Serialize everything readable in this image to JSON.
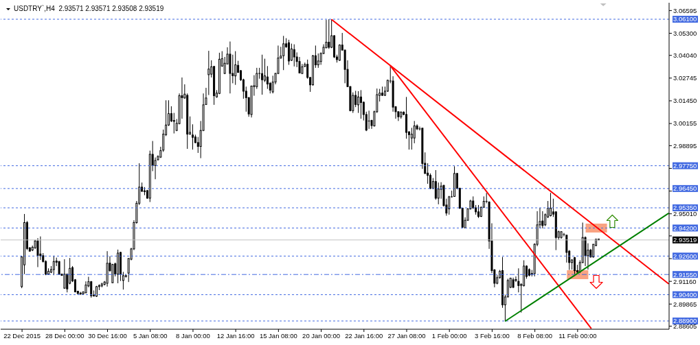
{
  "chart_data": {
    "type": "candlestick",
    "title": "USDTRY`,H4  2.93571 2.93571 2.93508 2.93519",
    "categories": [
      "22 Dec 2015",
      null,
      null,
      null,
      null,
      null,
      null,
      null,
      null,
      null,
      null,
      null,
      null,
      null,
      null,
      null,
      "28 Dec 00:00",
      null,
      null,
      null,
      null,
      null,
      null,
      null,
      null,
      null,
      null,
      null,
      null,
      null,
      null,
      null,
      "30 Dec 16:00",
      null,
      null,
      null,
      null,
      null,
      null,
      null,
      null,
      null,
      null,
      null,
      null,
      null,
      null,
      null,
      "5 Jan 08:00",
      null,
      null,
      null,
      null,
      null,
      null,
      null,
      null,
      null,
      null,
      null,
      null,
      null,
      null,
      null,
      "8 Jan 00:00",
      null,
      null,
      null,
      null,
      null,
      null,
      null,
      null,
      null,
      null,
      null,
      null,
      null,
      null,
      null,
      "12 Jan 16:00",
      null,
      null,
      null,
      null,
      null,
      null,
      null,
      null,
      null,
      null,
      null,
      null,
      null,
      null,
      null,
      "15 Jan 08:00",
      null,
      null,
      null,
      null,
      null,
      null,
      null,
      null,
      null,
      null,
      null,
      null,
      null,
      null,
      null,
      "20 Jan 00:00",
      null,
      null,
      null,
      null,
      null,
      null,
      null,
      null,
      null,
      null,
      null,
      null,
      null,
      null,
      null,
      "22 Jan 16:00",
      null,
      null,
      null,
      null,
      null,
      null,
      null,
      null,
      null,
      null,
      null,
      null,
      null,
      null,
      null,
      "27 Jan 08:00",
      null,
      null,
      null,
      null,
      null,
      null,
      null,
      null,
      null,
      null,
      null,
      null,
      null,
      null,
      null,
      "1 Feb 00:00",
      null,
      null,
      null,
      null,
      null,
      null,
      null,
      null,
      null,
      null,
      null,
      null,
      null,
      null,
      null,
      "3 Feb 16:00",
      null,
      null,
      null,
      null,
      null,
      null,
      null,
      null,
      null,
      null,
      null,
      null,
      null,
      null,
      null,
      "8 Feb 08:00",
      null,
      null,
      null,
      null,
      null,
      null,
      null,
      null,
      null,
      null,
      null,
      null,
      null,
      null,
      null,
      "11 Feb 00:00",
      null,
      null,
      null,
      null,
      null,
      null,
      null,
      null,
      null,
      null,
      null,
      null,
      null,
      null,
      null,
      null,
      null,
      null,
      null,
      null,
      null,
      null,
      null,
      null,
      null,
      null,
      null,
      null,
      null,
      null,
      null,
      null,
      null,
      null
    ],
    "color": "#000000",
    "ohlc": [
      [
        2.9086,
        2.9262,
        2.9077,
        2.9255
      ],
      [
        2.921,
        2.95,
        2.9157,
        2.9451
      ],
      [
        2.9451,
        2.946,
        2.9294,
        2.9303
      ],
      [
        2.9307,
        2.9311,
        2.9285,
        2.9288
      ],
      [
        2.9294,
        2.932,
        2.9288,
        2.931
      ],
      [
        2.9307,
        2.9353,
        2.9301,
        2.9346
      ],
      [
        2.9346,
        2.9362,
        2.9197,
        2.9264
      ],
      [
        2.9272,
        2.9372,
        2.9238,
        2.9262
      ],
      [
        2.9262,
        2.9277,
        2.9223,
        2.9229
      ],
      [
        2.9229,
        2.9236,
        2.9151,
        2.9157
      ],
      [
        2.9157,
        2.919,
        2.9153,
        2.9173
      ],
      [
        2.9168,
        2.9203,
        2.9163,
        2.9183
      ],
      [
        2.9183,
        2.9262,
        2.9151,
        2.9229
      ],
      [
        2.9232,
        2.9251,
        2.9203,
        2.9225
      ],
      [
        2.9229,
        2.9232,
        2.9153,
        2.9157
      ],
      [
        2.9157,
        2.916,
        2.9147,
        2.915
      ],
      [
        2.9077,
        2.9242,
        2.9073,
        2.9157
      ],
      [
        2.9157,
        2.916,
        2.9053,
        2.9073
      ],
      [
        2.9105,
        2.9249,
        2.9099,
        2.919
      ],
      [
        2.9194,
        2.9203,
        2.9112,
        2.9118
      ],
      [
        2.9125,
        2.9129,
        2.9053,
        2.9056
      ],
      [
        2.906,
        2.9062,
        2.904,
        2.9047
      ],
      [
        2.9049,
        2.9056,
        2.9038,
        2.9045
      ],
      [
        2.9044,
        2.906,
        2.904,
        2.9055
      ],
      [
        2.9051,
        2.9116,
        2.9048,
        2.9095
      ],
      [
        2.909,
        2.9142,
        2.9082,
        2.9114
      ],
      [
        2.9114,
        2.9118,
        2.9023,
        2.9034
      ],
      [
        2.9038,
        2.9064,
        2.903,
        2.9032
      ],
      [
        2.9031,
        2.909,
        2.9027,
        2.9086
      ],
      [
        2.9086,
        2.9099,
        2.9066,
        2.9092
      ],
      [
        2.909,
        2.9108,
        2.9082,
        2.9101
      ],
      [
        2.9099,
        2.9118,
        2.9092,
        2.9112
      ],
      [
        2.9105,
        2.9288,
        2.9086,
        2.9219
      ],
      [
        2.922,
        2.9259,
        2.917,
        2.9177
      ],
      [
        2.9108,
        2.9216,
        2.9105,
        2.9212
      ],
      [
        2.9216,
        2.9223,
        2.9144,
        2.9157
      ],
      [
        2.9157,
        2.9297,
        2.9105,
        2.9277
      ],
      [
        2.9281,
        2.9284,
        2.9118,
        2.9157
      ],
      [
        2.9121,
        2.917,
        2.9069,
        2.9148
      ],
      [
        2.9144,
        2.9157,
        2.9137,
        2.9148
      ],
      [
        2.9163,
        2.9249,
        2.9112,
        2.9246
      ],
      [
        2.9242,
        2.9307,
        2.9236,
        2.9301
      ],
      [
        2.9301,
        2.9464,
        2.9294,
        2.9451
      ],
      [
        2.9451,
        2.9574,
        2.9444,
        2.9561
      ],
      [
        2.9561,
        2.9789,
        2.9551,
        2.9653
      ],
      [
        2.9653,
        2.9679,
        2.9627,
        2.9629
      ],
      [
        2.9632,
        2.9653,
        2.9607,
        2.9627
      ],
      [
        2.9633,
        2.9637,
        2.9587,
        2.959
      ],
      [
        2.959,
        2.9861,
        2.9568,
        2.984
      ],
      [
        2.984,
        2.9916,
        2.9744,
        2.9776
      ],
      [
        2.9776,
        2.9822,
        2.9698,
        2.9805
      ],
      [
        2.9809,
        2.9835,
        2.9805,
        2.9827
      ],
      [
        2.9824,
        2.9883,
        2.9819,
        2.9861
      ],
      [
        2.9864,
        2.9981,
        2.9854,
        2.9955
      ],
      [
        2.9952,
        3.0148,
        2.9944,
        3.0007
      ],
      [
        3.0007,
        3.0148,
        3.0002,
        3.0072
      ],
      [
        3.0072,
        3.0114,
        3.0024,
        3.003
      ],
      [
        3.0033,
        3.0076,
        2.9959,
        3.0028
      ],
      [
        2.9976,
        3.0041,
        2.9972,
        3.0017
      ],
      [
        3.0015,
        3.0187,
        3.0011,
        3.0174
      ],
      [
        3.0174,
        3.0278,
        3.0043,
        3.0163
      ],
      [
        3.0161,
        3.0239,
        3.0157,
        3.0183
      ],
      [
        3.0176,
        3.0187,
        2.9871,
        2.9955
      ],
      [
        2.9955,
        3.0056,
        2.9952,
        2.9965
      ],
      [
        2.995,
        3.0011,
        2.9867,
        2.9937
      ],
      [
        2.9939,
        2.9952,
        2.9903,
        2.9907
      ],
      [
        2.9907,
        2.9939,
        2.9848,
        2.9885
      ],
      [
        2.9885,
        3.003,
        2.9818,
        2.9976
      ],
      [
        2.9976,
        3.0187,
        2.9972,
        3.0122
      ],
      [
        3.0124,
        3.0219,
        3.0122,
        3.0161
      ],
      [
        3.0294,
        3.043,
        3.0178,
        3.0326
      ],
      [
        3.0297,
        3.0376,
        3.0278,
        3.0339
      ],
      [
        3.0341,
        3.0343,
        3.0122,
        3.0174
      ],
      [
        3.0167,
        3.0206,
        3.0163,
        3.0189
      ],
      [
        3.0187,
        3.0419,
        3.0183,
        3.0382
      ],
      [
        3.0343,
        3.0428,
        3.0339,
        3.0385
      ],
      [
        3.0301,
        3.0395,
        3.0297,
        3.0359
      ],
      [
        3.0355,
        3.045,
        3.0353,
        3.0411
      ],
      [
        3.0411,
        3.0483,
        3.0187,
        3.0301
      ],
      [
        3.0301,
        3.0408,
        3.0245,
        3.0288
      ],
      [
        3.0287,
        3.0428,
        3.0236,
        3.035
      ],
      [
        3.0347,
        3.0373,
        3.0304,
        3.0307
      ],
      [
        3.0317,
        3.032,
        3.0258,
        3.0265
      ],
      [
        3.0265,
        3.0271,
        3.0157,
        3.02
      ],
      [
        3.02,
        3.0226,
        3.0083,
        3.0163
      ],
      [
        3.0163,
        3.0167,
        3.0054,
        3.007
      ],
      [
        3.0067,
        3.0232,
        3.005,
        3.0229
      ],
      [
        3.0226,
        3.0291,
        3.0174,
        3.0231
      ],
      [
        3.0226,
        3.0333,
        3.0213,
        3.0301
      ],
      [
        3.0301,
        3.0333,
        3.0271,
        3.03
      ],
      [
        3.03,
        3.0408,
        3.018,
        3.0265
      ],
      [
        3.0262,
        3.0385,
        3.0252,
        3.0287
      ],
      [
        3.0281,
        3.0343,
        3.0213,
        3.0241
      ],
      [
        3.0245,
        3.0252,
        3.0187,
        3.0206
      ],
      [
        3.0196,
        3.0288,
        3.0187,
        3.0252
      ],
      [
        3.0252,
        3.0304,
        3.0239,
        3.0301
      ],
      [
        3.0301,
        3.046,
        3.0297,
        3.0389
      ],
      [
        3.0389,
        3.0453,
        3.0385,
        3.04
      ],
      [
        3.0402,
        3.0515,
        3.032,
        3.047
      ],
      [
        3.047,
        3.0502,
        3.0447,
        3.0453
      ],
      [
        3.0476,
        3.0493,
        3.035,
        3.0372
      ],
      [
        3.0376,
        3.0471,
        3.0372,
        3.0441
      ],
      [
        3.0437,
        3.0467,
        3.0341,
        3.0395
      ],
      [
        3.0395,
        3.0421,
        3.0337,
        3.0369
      ],
      [
        3.0369,
        3.0395,
        3.0301,
        3.0304
      ],
      [
        3.0301,
        3.0355,
        3.0297,
        3.0339
      ],
      [
        3.0341,
        3.0363,
        3.0337,
        3.0352
      ],
      [
        3.0353,
        3.038,
        3.0271,
        3.0278
      ],
      [
        3.0278,
        3.0281,
        3.0196,
        3.0236
      ],
      [
        3.0236,
        3.0406,
        3.0232,
        3.0402
      ],
      [
        3.0402,
        3.046,
        3.0333,
        3.035
      ],
      [
        3.035,
        3.0415,
        3.0333,
        3.0372
      ],
      [
        3.0369,
        3.0421,
        3.035,
        3.0415
      ],
      [
        3.0415,
        3.0467,
        3.0411,
        3.045
      ],
      [
        3.0447,
        3.0606,
        3.0445,
        3.0479
      ],
      [
        3.0479,
        3.061,
        3.0441,
        3.045
      ],
      [
        3.045,
        3.061,
        3.0445,
        3.0516
      ],
      [
        3.0516,
        3.0519,
        3.0389,
        3.0395
      ],
      [
        3.0395,
        3.0408,
        3.0363,
        3.038
      ],
      [
        3.0376,
        3.0467,
        3.0372,
        3.0463
      ],
      [
        3.0463,
        3.0532,
        3.0432,
        3.0434
      ],
      [
        3.0434,
        3.0437,
        3.0245,
        3.0324
      ],
      [
        3.0324,
        3.0376,
        3.0223,
        3.0226
      ],
      [
        3.0226,
        3.0229,
        3.0085,
        3.0089
      ],
      [
        3.0089,
        3.0193,
        3.0076,
        3.0176
      ],
      [
        3.0176,
        3.0202,
        3.0109,
        3.0124
      ],
      [
        3.0122,
        3.02,
        3.0076,
        3.0167
      ],
      [
        3.0167,
        3.0206,
        3.0043,
        3.0135
      ],
      [
        3.0137,
        3.0141,
        3.0033,
        3.0067
      ],
      [
        3.0067,
        3.0083,
        2.9972,
        2.9978
      ],
      [
        3.003,
        3.0089,
        2.9985,
        3.0028
      ],
      [
        3.0033,
        3.0037,
        2.9985,
        3.0004
      ],
      [
        3.0002,
        3.0089,
        2.9998,
        3.0083
      ],
      [
        3.0083,
        3.0215,
        3.0076,
        3.018
      ],
      [
        3.0176,
        3.0213,
        3.0141,
        3.0189
      ],
      [
        3.0189,
        3.0226,
        3.0174,
        3.0176
      ],
      [
        3.0176,
        3.0226,
        3.0174,
        3.02
      ],
      [
        3.02,
        3.0265,
        3.0196,
        3.0262
      ],
      [
        3.0258,
        3.0343,
        3.0245,
        3.0257
      ],
      [
        3.0258,
        3.0285,
        3.0083,
        3.0109
      ],
      [
        3.0111,
        3.0115,
        3.0043,
        3.0083
      ],
      [
        3.0083,
        3.0085,
        3.003,
        3.0054
      ],
      [
        3.0054,
        3.0085,
        3.0043,
        3.008
      ],
      [
        3.008,
        3.0085,
        3.0063,
        3.0067
      ],
      [
        3.0067,
        3.0167,
        2.9929,
        2.9965
      ],
      [
        2.9968,
        2.9972,
        2.9867,
        2.9952
      ],
      [
        2.9933,
        2.9991,
        2.9867,
        2.9955
      ],
      [
        2.9933,
        3.003,
        2.9903,
        3.0002
      ],
      [
        3.0002,
        3.0011,
        2.9978,
        2.9985
      ],
      [
        2.9985,
        2.9998,
        2.9976,
        2.9984
      ],
      [
        2.9989,
        2.9991,
        2.9757,
        2.9788
      ],
      [
        2.9789,
        2.9851,
        2.9728,
        2.9731
      ],
      [
        2.9733,
        2.9789,
        2.9672,
        2.972
      ],
      [
        2.972,
        2.9731,
        2.9642,
        2.9646
      ],
      [
        2.9646,
        2.9705,
        2.9642,
        2.9685
      ],
      [
        2.9685,
        2.975,
        2.9581,
        2.959
      ],
      [
        2.959,
        2.9679,
        2.9555,
        2.9642
      ],
      [
        2.964,
        2.9681,
        2.9587,
        2.9659
      ],
      [
        2.9663,
        2.9666,
        2.9542,
        2.9548
      ],
      [
        2.9551,
        2.9587,
        2.949,
        2.9505
      ],
      [
        2.9529,
        2.9603,
        2.9496,
        2.9598
      ],
      [
        2.9598,
        2.9633,
        2.9593,
        2.9597
      ],
      [
        2.96,
        2.9772,
        2.9598,
        2.9731
      ],
      [
        2.9731,
        2.9733,
        2.964,
        2.9646
      ],
      [
        2.9646,
        2.965,
        2.9529,
        2.9533
      ],
      [
        2.9533,
        2.9535,
        2.9418,
        2.9425
      ],
      [
        2.9421,
        2.9481,
        2.9418,
        2.9464
      ],
      [
        2.9464,
        2.9533,
        2.946,
        2.9529
      ],
      [
        2.9529,
        2.9581,
        2.9525,
        2.9574
      ],
      [
        2.9574,
        2.96,
        2.9529,
        2.9535
      ],
      [
        2.9535,
        2.9551,
        2.9496,
        2.9512
      ],
      [
        2.9512,
        2.9551,
        2.9477,
        2.9486
      ],
      [
        2.9486,
        2.9542,
        2.9483,
        2.9538
      ],
      [
        2.9538,
        2.96,
        2.9535,
        2.9572
      ],
      [
        2.9572,
        2.962,
        2.9561,
        2.9569
      ],
      [
        2.9568,
        2.9572,
        2.9301,
        2.9346
      ],
      [
        2.9346,
        2.9447,
        2.9163,
        2.9177
      ],
      [
        2.9181,
        2.9186,
        2.9082,
        2.9105
      ],
      [
        2.9105,
        2.9151,
        2.9099,
        2.9137
      ],
      [
        2.9137,
        2.9181,
        2.9131,
        2.9173
      ],
      [
        2.9177,
        2.9255,
        2.8965,
        2.8982
      ],
      [
        2.8982,
        2.904,
        2.889,
        2.9027
      ],
      [
        2.9027,
        2.9131,
        2.9025,
        2.9121
      ],
      [
        2.9082,
        2.9137,
        2.9077,
        2.9134
      ],
      [
        2.9125,
        2.9137,
        2.9077,
        2.9082
      ],
      [
        2.9126,
        2.9144,
        2.9112,
        2.9121
      ],
      [
        2.9116,
        2.919,
        2.9053,
        2.9092
      ],
      [
        2.9092,
        2.9105,
        2.8938,
        2.9099
      ],
      [
        2.9092,
        2.9236,
        2.9086,
        2.9203
      ],
      [
        2.9203,
        2.9207,
        2.9131,
        2.9144
      ],
      [
        2.9183,
        2.919,
        2.9144,
        2.9151
      ],
      [
        2.9161,
        2.9181,
        2.9144,
        2.9157
      ],
      [
        2.916,
        2.9333,
        2.9144,
        2.9327
      ],
      [
        2.9327,
        2.9516,
        2.9316,
        2.9438
      ],
      [
        2.9438,
        2.9535,
        2.9418,
        2.9457
      ],
      [
        2.946,
        2.9516,
        2.9418,
        2.9434
      ],
      [
        2.9438,
        2.9503,
        2.9431,
        2.9496
      ],
      [
        2.9483,
        2.9574,
        2.9477,
        2.9533
      ],
      [
        2.949,
        2.962,
        2.9486,
        2.9533
      ],
      [
        2.9512,
        2.9587,
        2.9483,
        2.9499
      ],
      [
        2.9512,
        2.9516,
        2.9294,
        2.9366
      ],
      [
        2.9366,
        2.9405,
        2.9353,
        2.9399
      ],
      [
        2.9366,
        2.9402,
        2.9359,
        2.9399
      ],
      [
        2.9383,
        2.9392,
        2.9372,
        2.938
      ],
      [
        2.9379,
        2.9381,
        2.9223,
        2.9281
      ],
      [
        2.9288,
        2.9294,
        2.9181,
        2.9223
      ],
      [
        2.9223,
        2.9242,
        2.9183,
        2.9238
      ],
      [
        2.9251,
        2.9255,
        2.9157,
        2.9177
      ],
      [
        2.9177,
        2.921,
        2.9163,
        2.917
      ],
      [
        2.917,
        2.9236,
        2.9163,
        2.9223
      ],
      [
        2.9223,
        2.9451,
        2.922,
        2.9366
      ],
      [
        2.9366,
        2.9372,
        2.9203,
        2.9262
      ],
      [
        2.9262,
        2.9333,
        2.9183,
        2.9294
      ],
      [
        2.9294,
        2.9301,
        2.9251,
        2.9255
      ],
      [
        2.9255,
        2.9329,
        2.9251,
        2.9327
      ],
      [
        2.932,
        2.9359,
        2.9316,
        2.9356
      ],
      [
        2.93571,
        2.93571,
        2.93508,
        2.93519
      ],
      null,
      null,
      null,
      null,
      null,
      null,
      null,
      null,
      null,
      null,
      null,
      null,
      null,
      null,
      null,
      null,
      null,
      null,
      null,
      null,
      null,
      null,
      null,
      null,
      null,
      null
    ],
    "series": [
      {
        "type": "line",
        "color": "#ff0000",
        "values": [
          null,
          null,
          null,
          null,
          null,
          null,
          null,
          null,
          null,
          null,
          null,
          null,
          null,
          null,
          null,
          null,
          null,
          null,
          null,
          null,
          null,
          null,
          null,
          null,
          null,
          null,
          null,
          null,
          null,
          null,
          null,
          null,
          null,
          null,
          null,
          null,
          null,
          null,
          null,
          null,
          null,
          null,
          null,
          null,
          null,
          null,
          null,
          null,
          null,
          null,
          null,
          null,
          null,
          null,
          null,
          null,
          null,
          null,
          null,
          null,
          null,
          null,
          null,
          null,
          null,
          null,
          null,
          null,
          null,
          null,
          null,
          null,
          null,
          null,
          null,
          null,
          null,
          null,
          null,
          null,
          null,
          null,
          null,
          null,
          null,
          null,
          null,
          null,
          null,
          null,
          null,
          null,
          null,
          null,
          null,
          null,
          null,
          null,
          null,
          null,
          null,
          null,
          null,
          null,
          null,
          null,
          null,
          null,
          null,
          null,
          null,
          null,
          null,
          null,
          null,
          null,
          3.0607,
          null,
          null,
          null,
          null,
          null,
          null,
          null,
          null,
          null,
          null,
          null,
          null,
          null,
          null,
          null,
          null,
          null,
          null,
          null,
          null,
          null,
          null,
          null,
          null,
          null,
          null,
          null,
          null,
          null,
          null,
          null,
          null,
          null,
          null,
          null,
          null,
          null,
          null,
          null,
          null,
          null,
          null,
          null,
          null,
          null,
          null,
          null,
          null,
          null,
          null,
          null,
          null,
          null,
          null,
          null,
          null,
          null,
          null,
          null,
          null,
          null,
          null,
          null,
          null,
          null,
          null,
          null,
          null,
          null,
          null,
          null,
          null,
          null,
          null,
          null,
          null,
          null,
          null,
          null,
          null,
          null,
          null,
          null,
          null,
          null,
          null,
          null,
          null,
          null,
          null,
          null,
          null,
          null,
          null,
          null,
          null,
          null,
          null,
          null,
          null,
          null,
          null,
          null,
          null,
          null,
          null,
          null,
          null,
          null,
          null,
          null,
          null,
          null,
          null,
          null,
          null,
          null,
          null,
          null,
          null,
          null,
          null,
          null,
          null,
          null,
          2.9103
        ]
      },
      {
        "type": "line",
        "color": "#ff0000",
        "values": [
          null,
          null,
          null,
          null,
          null,
          null,
          null,
          null,
          null,
          null,
          null,
          null,
          null,
          null,
          null,
          null,
          null,
          null,
          null,
          null,
          null,
          null,
          null,
          null,
          null,
          null,
          null,
          null,
          null,
          null,
          null,
          null,
          null,
          null,
          null,
          null,
          null,
          null,
          null,
          null,
          null,
          null,
          null,
          null,
          null,
          null,
          null,
          null,
          null,
          null,
          null,
          null,
          null,
          null,
          null,
          null,
          null,
          null,
          null,
          null,
          null,
          null,
          null,
          null,
          null,
          null,
          null,
          null,
          null,
          null,
          null,
          null,
          null,
          null,
          null,
          null,
          null,
          null,
          null,
          null,
          null,
          null,
          null,
          null,
          null,
          null,
          null,
          null,
          null,
          null,
          null,
          null,
          null,
          null,
          null,
          null,
          null,
          null,
          null,
          null,
          null,
          null,
          null,
          null,
          null,
          null,
          null,
          null,
          null,
          null,
          null,
          null,
          null,
          null,
          null,
          null,
          null,
          null,
          null,
          null,
          null,
          null,
          null,
          null,
          null,
          null,
          null,
          null,
          null,
          null,
          null,
          null,
          null,
          null,
          null,
          null,
          null,
          null,
          3.0343,
          null,
          null,
          null,
          null,
          null,
          null,
          null,
          null,
          null,
          null,
          null,
          null,
          null,
          null,
          null,
          null,
          null,
          null,
          null,
          null,
          null,
          null,
          null,
          null,
          null,
          null,
          null,
          null,
          null,
          null,
          null,
          null,
          null,
          null,
          null,
          null,
          null,
          null,
          null,
          null,
          null,
          null,
          null,
          null,
          null,
          null,
          null,
          null,
          null,
          null,
          null,
          null,
          null,
          null,
          null,
          null,
          null,
          null,
          null,
          null,
          null,
          null,
          null,
          null,
          null,
          null,
          null,
          null,
          null,
          null,
          null,
          null,
          null,
          null,
          2.8849,
          null,
          null,
          null,
          null,
          null,
          null,
          null,
          null,
          null,
          null,
          null,
          null,
          null,
          null,
          null,
          null,
          null,
          null,
          null,
          null,
          null,
          null,
          null,
          null,
          null,
          null,
          null,
          null,
          null
        ]
      },
      {
        "type": "line",
        "color": "#008000",
        "values": [
          null,
          null,
          null,
          null,
          null,
          null,
          null,
          null,
          null,
          null,
          null,
          null,
          null,
          null,
          null,
          null,
          null,
          null,
          null,
          null,
          null,
          null,
          null,
          null,
          null,
          null,
          null,
          null,
          null,
          null,
          null,
          null,
          null,
          null,
          null,
          null,
          null,
          null,
          null,
          null,
          null,
          null,
          null,
          null,
          null,
          null,
          null,
          null,
          null,
          null,
          null,
          null,
          null,
          null,
          null,
          null,
          null,
          null,
          null,
          null,
          null,
          null,
          null,
          null,
          null,
          null,
          null,
          null,
          null,
          null,
          null,
          null,
          null,
          null,
          null,
          null,
          null,
          null,
          null,
          null,
          null,
          null,
          null,
          null,
          null,
          null,
          null,
          null,
          null,
          null,
          null,
          null,
          null,
          null,
          null,
          null,
          null,
          null,
          null,
          null,
          null,
          null,
          null,
          null,
          null,
          null,
          null,
          null,
          null,
          null,
          null,
          null,
          null,
          null,
          null,
          null,
          null,
          null,
          null,
          null,
          null,
          null,
          null,
          null,
          null,
          null,
          null,
          null,
          null,
          null,
          null,
          null,
          null,
          null,
          null,
          null,
          null,
          null,
          null,
          null,
          null,
          null,
          null,
          null,
          null,
          null,
          null,
          null,
          null,
          null,
          null,
          null,
          null,
          null,
          null,
          null,
          null,
          null,
          null,
          null,
          null,
          null,
          null,
          null,
          null,
          null,
          null,
          null,
          null,
          null,
          null,
          null,
          null,
          null,
          null,
          null,
          null,
          null,
          null,
          null,
          null,
          2.889,
          null,
          null,
          null,
          null,
          null,
          null,
          null,
          null,
          null,
          null,
          null,
          null,
          null,
          null,
          null,
          null,
          null,
          null,
          null,
          null,
          null,
          null,
          null,
          null,
          null,
          null,
          null,
          null,
          null,
          null,
          null,
          null,
          null,
          null,
          null,
          null,
          null,
          null,
          null,
          null,
          null,
          null,
          null,
          null,
          null,
          null,
          null,
          null,
          null,
          null,
          null,
          null,
          null,
          null,
          null,
          null,
          null,
          null,
          null,
          null,
          2.9503
        ]
      }
    ],
    "ylim": [
      2.8843,
      3.0704
    ],
    "yticks": [
      3.06595,
      {
        "value": 3.053,
        "label": "3.05300"
      },
      {
        "value": 3.0404,
        "label": "3.04040"
      },
      3.02745,
      {
        "value": 3.0145,
        "label": "3.01450"
      },
      3.00155,
      2.98895,
      {
        "value": 2.976,
        "label": null
      },
      {
        "value": 2.96305,
        "label": null
      },
      {
        "value": 2.9501,
        "label": "2.95010"
      },
      {
        "value": 2.9375,
        "label": null
      },
      {
        "value": 2.92455,
        "label": null
      },
      {
        "value": 2.9116,
        "label": "2.91160"
      },
      2.89865,
      2.88605
    ],
    "ref_lines": [
      {
        "axis": "y",
        "value": 3.061,
        "label": "3.06100",
        "color": "#4169e1",
        "line_style": "dashed"
      },
      {
        "axis": "y",
        "value": 2.9775,
        "label": "2.97750",
        "color": "#4169e1",
        "line_style": "dashed"
      },
      {
        "axis": "y",
        "value": 2.9645,
        "label": "2.96450",
        "color": "#4169e1",
        "line_style": "dashed"
      },
      {
        "axis": "y",
        "value": 2.9535,
        "label": "2.95350",
        "color": "#4169e1",
        "line_style": "dashed"
      },
      {
        "axis": "y",
        "value": 2.942,
        "label": "2.94200",
        "color": "#4169e1",
        "line_style": "dashed"
      },
      {
        "axis": "y",
        "value": 2.93519,
        "label": "2.93519",
        "color": "#c0c0c0",
        "line_style": "solid"
      },
      {
        "axis": "y",
        "value": 2.926,
        "label": "2.92600",
        "color": "#4169e1",
        "line_style": "dashed"
      },
      {
        "axis": "y",
        "value": 2.9155,
        "label": "2.91550",
        "color": "#4169e1",
        "line_style": "dashdot"
      },
      {
        "axis": "y",
        "value": 2.904,
        "label": "2.90400",
        "color": "#4169e1",
        "line_style": "dashed"
      },
      {
        "axis": "y",
        "value": 2.889,
        "label": "2.88900",
        "color": "#4169e1",
        "line_style": "dashed"
      }
    ]
  }
}
